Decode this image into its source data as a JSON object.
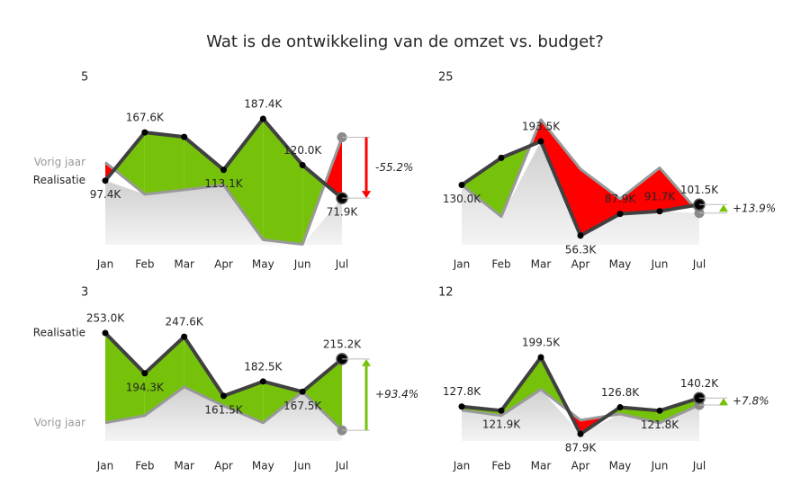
{
  "title": "Wat is de ontwikkeling van de omzet vs. budget?",
  "chart_data": [
    {
      "type": "line",
      "title": "5",
      "categories": [
        "Jan",
        "Feb",
        "Mar",
        "Apr",
        "May",
        "Jun",
        "Jul"
      ],
      "series": [
        {
          "name": "Realisatie",
          "color": "#404040",
          "values": [
            97.4,
            167.6,
            161,
            113.1,
            187.4,
            120,
            71.9
          ],
          "value_labels": [
            "97.4K",
            "167.6K",
            null,
            "113.1K",
            "187.4K",
            "120.0K",
            "71.9K"
          ]
        },
        {
          "name": "Vorig jaar",
          "color": "#999999",
          "values": [
            124,
            77.5,
            84,
            91,
            11.3,
            4.7,
            160.5
          ]
        }
      ],
      "variance": {
        "value": -55.2,
        "label": "-55.2%"
      },
      "positive_color": "#76c20a",
      "negative_color": "#ff0000"
    },
    {
      "type": "line",
      "title": "25",
      "categories": [
        "Jan",
        "Feb",
        "Mar",
        "Apr",
        "May",
        "Jun",
        "Jul"
      ],
      "series": [
        {
          "color": "#404040",
          "values": [
            130,
            169.5,
            193.5,
            56.3,
            87.9,
            91.7,
            101.5
          ],
          "value_labels": [
            "130.0K",
            null,
            "193.5K",
            "56.3K",
            "87.9K",
            "91.7K",
            "101.5K"
          ]
        },
        {
          "color": "#999999",
          "values": [
            130,
            84,
            225,
            153,
            110,
            155,
            89.1
          ]
        }
      ],
      "variance": {
        "value": 13.9,
        "label": "+13.9%"
      },
      "positive_color": "#76c20a",
      "negative_color": "#ff0000"
    },
    {
      "type": "line",
      "title": "3",
      "categories": [
        "Jan",
        "Feb",
        "Mar",
        "Apr",
        "May",
        "Jun",
        "Jul"
      ],
      "series": [
        {
          "name": "Realisatie",
          "color": "#404040",
          "values": [
            253,
            194.3,
            247.6,
            161.5,
            182.5,
            167.5,
            215.2
          ],
          "value_labels": [
            "253.0K",
            "194.3K",
            "247.6K",
            "161.5K",
            "182.5K",
            "167.5K",
            "215.2K"
          ]
        },
        {
          "name": "Vorig jaar",
          "color": "#999999",
          "values": [
            122.3,
            132.8,
            174.6,
            147,
            122.3,
            167.5,
            111.3
          ]
        }
      ],
      "variance": {
        "value": 93.4,
        "label": "+93.4%"
      },
      "positive_color": "#76c20a",
      "negative_color": "#ff0000"
    },
    {
      "type": "line",
      "title": "12",
      "categories": [
        "Jan",
        "Feb",
        "Mar",
        "Apr",
        "May",
        "Jun",
        "Jul"
      ],
      "series": [
        {
          "color": "#404040",
          "values": [
            127.8,
            121.9,
            199.5,
            87.9,
            126.8,
            121.8,
            140.2
          ],
          "value_labels": [
            "127.8K",
            "121.9K",
            "199.5K",
            "87.9K",
            "126.8K",
            "121.8K",
            "140.2K"
          ]
        },
        {
          "color": "#999999",
          "values": [
            122.5,
            114.7,
            152.8,
            108,
            117,
            104,
            130.1
          ]
        }
      ],
      "variance": {
        "value": 7.8,
        "label": "+7.8%"
      },
      "positive_color": "#76c20a",
      "negative_color": "#ff0000"
    }
  ]
}
